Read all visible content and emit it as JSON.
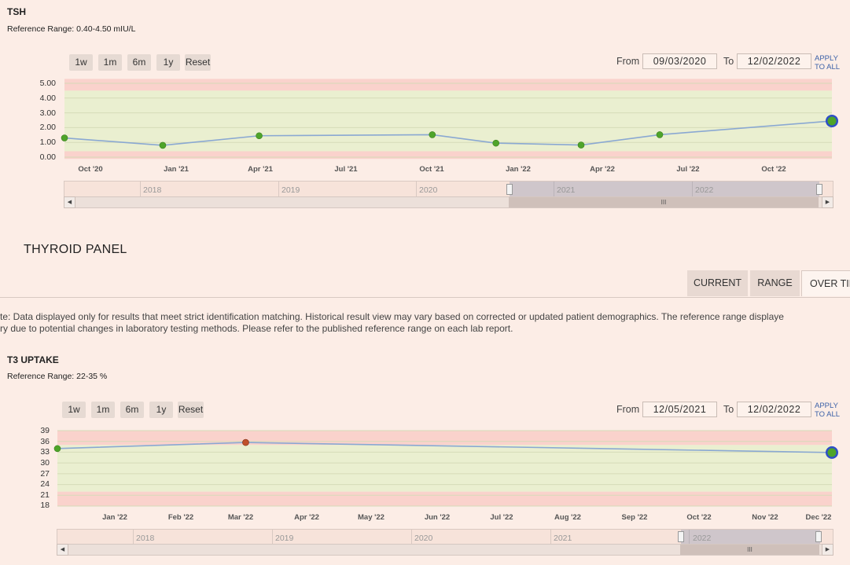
{
  "tsh": {
    "title": "TSH",
    "reference_range": "Reference Range: 0.40-4.50 mIU/L",
    "range_buttons": [
      "1w",
      "1m",
      "6m",
      "1y",
      "Reset"
    ],
    "from_label": "From",
    "from_value": "09/03/2020",
    "to_label": "To",
    "to_value": "12/02/2022",
    "apply_line1": "APPLY",
    "apply_line2": "TO ALL",
    "navigator_years": [
      "2018",
      "2019",
      "2020",
      "2021",
      "2022"
    ],
    "scroll_grip": "III"
  },
  "panel": {
    "heading": "THYROID PANEL",
    "tabs": [
      "CURRENT",
      "RANGE",
      "OVER TIM"
    ],
    "note_line1": "te: Data displayed only for results that meet strict identification matching. Historical result view may vary based on corrected or updated patient demographics. The reference range displaye",
    "note_line2": "ry due to potential changes in laboratory testing methods. Please refer to the published reference range on each lab report."
  },
  "t3": {
    "title": "T3 UPTAKE",
    "reference_range": "Reference Range: 22-35 %",
    "range_buttons": [
      "1w",
      "1m",
      "6m",
      "1y",
      "Reset"
    ],
    "from_label": "From",
    "from_value": "12/05/2021",
    "to_label": "To",
    "to_value": "12/02/2022",
    "apply_line1": "APPLY",
    "apply_line2": "TO ALL",
    "navigator_years": [
      "2018",
      "2019",
      "2020",
      "2021",
      "2022"
    ],
    "scroll_grip": "III"
  },
  "colors": {
    "page_bg": "#fcede6",
    "in_range_band": "#eaefd0",
    "out_of_range_band": "#fad2cc",
    "line": "#8aa8d2",
    "normal_point": "#4ea42a",
    "abnormal_point": "#c0502a",
    "latest_ring": "#2f4fc8",
    "link": "#3d62a8"
  },
  "chart_data": [
    {
      "type": "line",
      "title": "TSH",
      "ylim": [
        0,
        5
      ],
      "y_ticks": [
        "0.00",
        "1.00",
        "2.00",
        "3.00",
        "4.00",
        "5.00"
      ],
      "x_ticks": [
        "Oct '20",
        "Jan '21",
        "Apr '21",
        "Jul '21",
        "Oct '21",
        "Jan '22",
        "Apr '22",
        "Jul '22",
        "Oct '22"
      ],
      "reference_band": [
        0.4,
        4.5
      ],
      "points": [
        {
          "date": "2020-09-03",
          "value": 1.3
        },
        {
          "date": "2020-12-17",
          "value": 0.8
        },
        {
          "date": "2021-03-30",
          "value": 1.45
        },
        {
          "date": "2021-10-01",
          "value": 1.52
        },
        {
          "date": "2021-12-08",
          "value": 0.95
        },
        {
          "date": "2022-03-09",
          "value": 0.82
        },
        {
          "date": "2022-06-01",
          "value": 1.52
        },
        {
          "date": "2022-12-02",
          "value": 2.45
        }
      ],
      "grid": true
    },
    {
      "type": "line",
      "title": "T3 UPTAKE",
      "ylim": [
        18,
        39
      ],
      "y_ticks": [
        "18",
        "21",
        "24",
        "27",
        "30",
        "33",
        "36",
        "39"
      ],
      "x_ticks": [
        "Jan '22",
        "Feb '22",
        "Mar '22",
        "Apr '22",
        "May '22",
        "Jun '22",
        "Jul '22",
        "Aug '22",
        "Sep '22",
        "Oct '22",
        "Nov '22",
        "Dec '22"
      ],
      "reference_band": [
        22,
        35
      ],
      "points": [
        {
          "date": "2021-12-05",
          "value": 34,
          "flag": "normal"
        },
        {
          "date": "2022-03-03",
          "value": 35.7,
          "flag": "high"
        },
        {
          "date": "2022-12-02",
          "value": 32.9,
          "flag": "normal"
        }
      ],
      "grid": true
    }
  ]
}
